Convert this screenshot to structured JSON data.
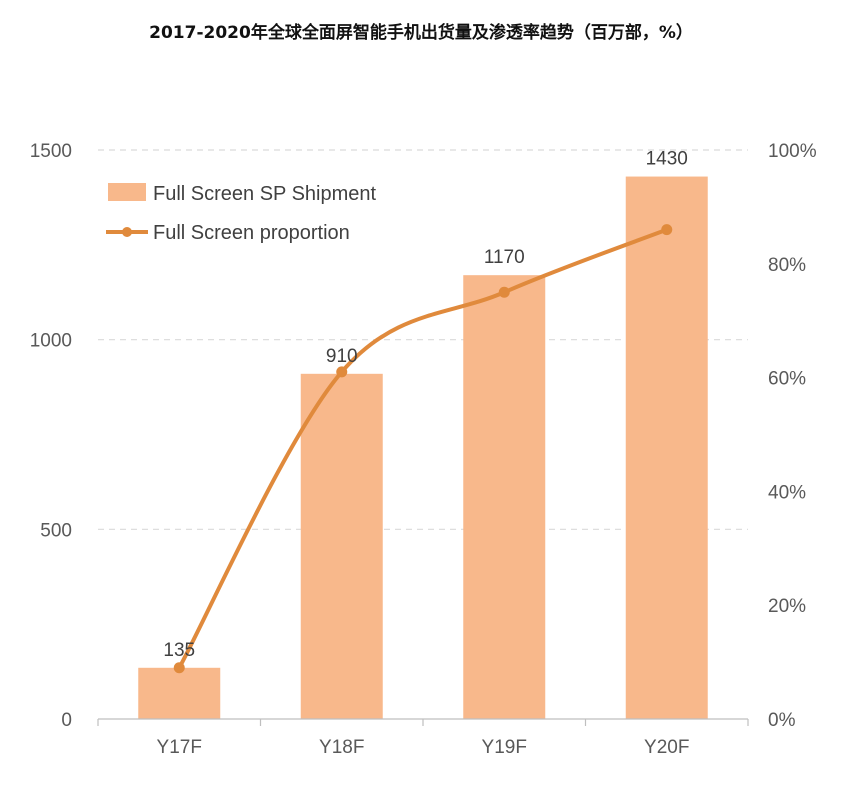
{
  "title": "2017-2020年全球全面屏智能手机出货量及渗透率趋势（百万部，%）",
  "chart_data": {
    "type": "bar",
    "categories": [
      "Y17F",
      "Y18F",
      "Y19F",
      "Y20F"
    ],
    "series": [
      {
        "name": "Full Screen SP Shipment",
        "type": "bar",
        "axis": "left",
        "values": [
          135,
          910,
          1170,
          1430
        ],
        "color": "#f8b88b"
      },
      {
        "name": "Full Screen proportion",
        "type": "line",
        "axis": "right",
        "values": [
          9,
          61,
          75,
          86
        ],
        "color": "#e08a3c"
      }
    ],
    "y_left": {
      "min": 0,
      "max": 1500,
      "ticks": [
        "0",
        "500",
        "1000",
        "1500"
      ]
    },
    "y_right": {
      "min": 0,
      "max": 100,
      "ticks": [
        "0%",
        "20%",
        "40%",
        "60%",
        "80%",
        "100%"
      ]
    },
    "data_labels": [
      "135",
      "910",
      "1170",
      "1430"
    ],
    "grid": "dashed-horizontal",
    "legend": "top-left"
  }
}
